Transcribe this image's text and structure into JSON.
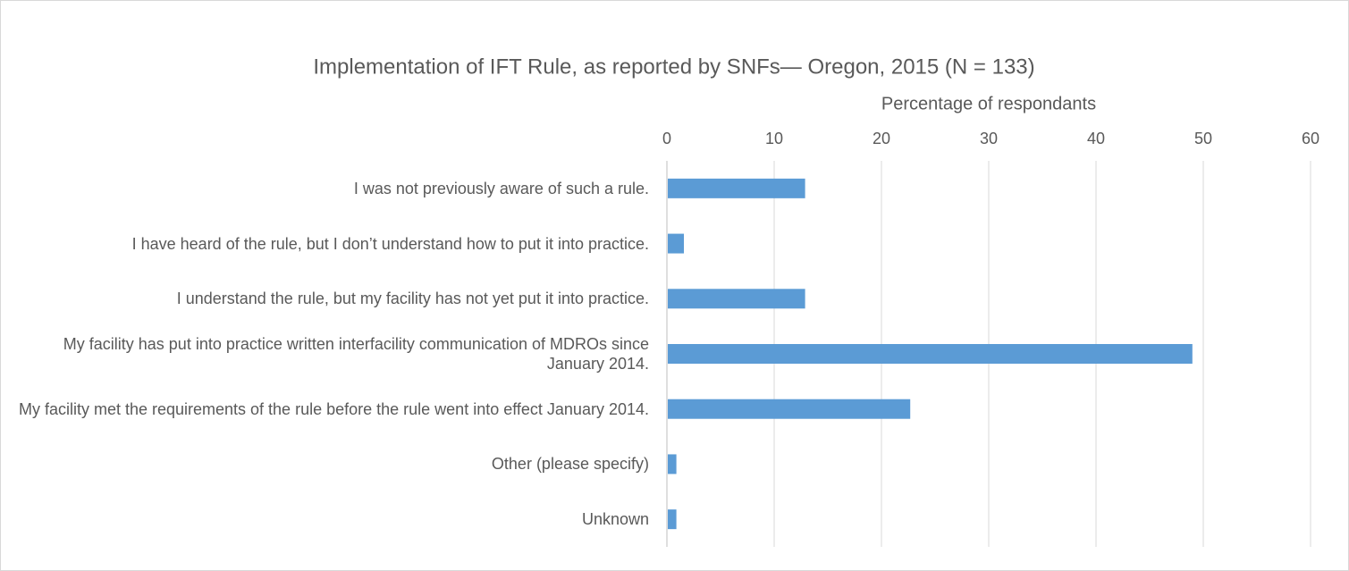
{
  "chart_data": {
    "type": "barh",
    "title": "Implementation of IFT Rule, as reported by SNFs— Oregon, 2015 (N = 133)",
    "x_label": "Percentage of respondants",
    "categories": [
      "I was not previously aware of such a rule.",
      "I have heard of the rule, but I don’t understand how to put it into practice.",
      "I understand the rule, but my facility has not yet put it into practice.",
      "My facility has put into practice written interfacility communication of MDROs since January 2014.",
      "My facility met the requirements of the rule before the rule went into effect January 2014.",
      "Other (please specify)",
      "Unknown"
    ],
    "values": [
      12.8,
      1.5,
      12.8,
      48.9,
      22.6,
      0.8,
      0.8
    ],
    "color": "#5b9bd5",
    "xlim": [
      0,
      60
    ],
    "xticks": [
      0,
      10,
      20,
      30,
      40,
      50,
      60
    ],
    "grid": true
  }
}
